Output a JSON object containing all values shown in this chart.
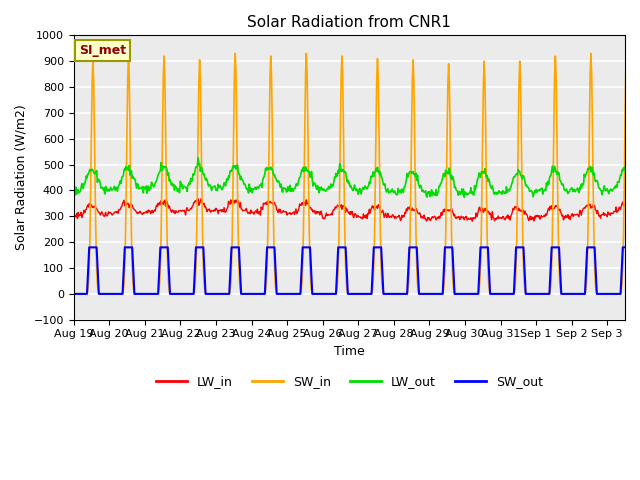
{
  "title": "Solar Radiation from CNR1",
  "xlabel": "Time",
  "ylabel": "Solar Radiation (W/m2)",
  "ylim": [
    -100,
    1000
  ],
  "background_color": "#ebebeb",
  "grid_color": "white",
  "tick_labels": [
    "Aug 19",
    "Aug 20",
    "Aug 21",
    "Aug 22",
    "Aug 23",
    "Aug 24",
    "Aug 25",
    "Aug 26",
    "Aug 27",
    "Aug 28",
    "Aug 29",
    "Aug 30",
    "Aug 31",
    "Sep 1",
    "Sep 2",
    "Sep 3"
  ],
  "station_label": "SI_met",
  "colors": {
    "LW_in": "#ff0000",
    "SW_in": "#ffa500",
    "LW_out": "#00dd00",
    "SW_out": "#0000ff"
  }
}
